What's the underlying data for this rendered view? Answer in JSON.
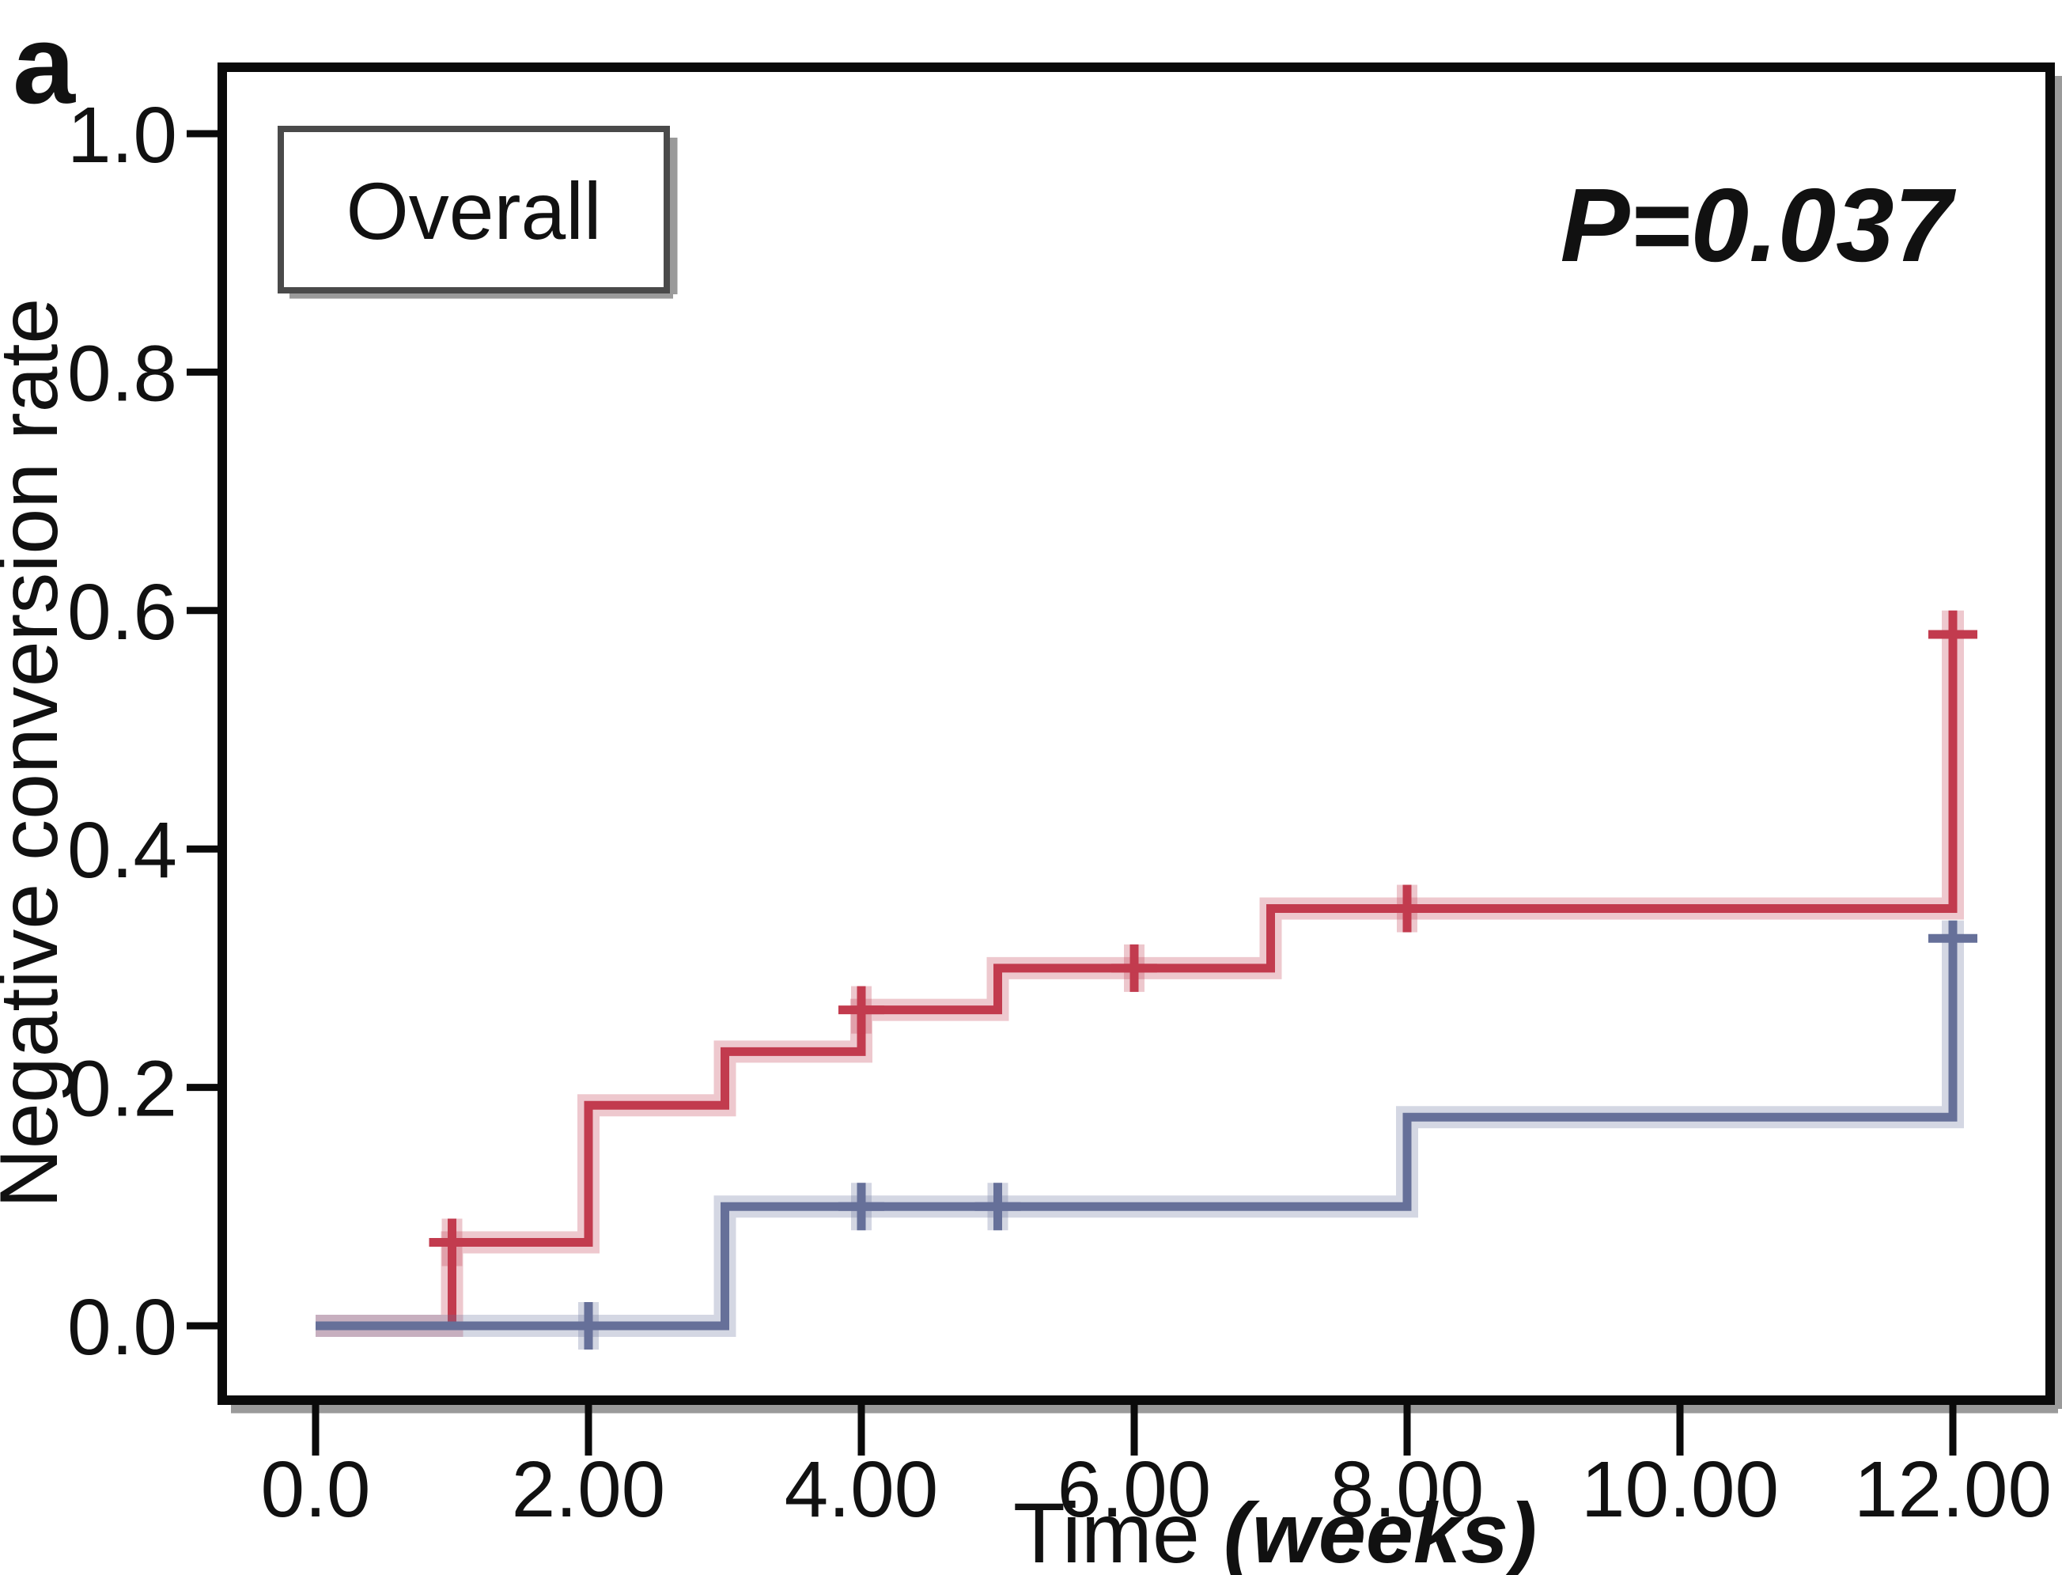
{
  "panel_label": "a",
  "legend": {
    "label": "Overall"
  },
  "annotation": {
    "text": "P=0.037"
  },
  "axes": {
    "x": {
      "title_normal": "Time ",
      "title_italic": "(weeks)",
      "tick_labels": [
        "0.0",
        "2.00",
        "4.00",
        "6.00",
        "8.00",
        "10.00",
        "12.00"
      ],
      "tick_values": [
        0,
        2,
        4,
        6,
        8,
        10,
        12
      ]
    },
    "y": {
      "title": "Negative conversion rate",
      "tick_labels": [
        "0.0",
        "0.2",
        "0.4",
        "0.6",
        "0.8",
        "1.0"
      ],
      "tick_values": [
        0,
        0.2,
        0.4,
        0.6,
        0.8,
        1.0
      ]
    }
  },
  "chart_data": {
    "type": "line",
    "subtype": "kaplan-meier-step-curves",
    "title": "",
    "xlabel": "Time (weeks)",
    "ylabel": "Negative conversion rate",
    "xlim": [
      0,
      12.7
    ],
    "ylim": [
      0,
      1.05
    ],
    "grid": "off",
    "p_value": "P=0.037",
    "group_box": "Overall",
    "series": [
      {
        "name": "upper-red-group",
        "color": "#c23b4e",
        "halo_color": "#c23b4e",
        "steps_x_weeks": [
          0,
          1,
          2,
          3,
          4,
          5,
          7
        ],
        "steps_y_rate": [
          0,
          0.07,
          0.185,
          0.23,
          0.265,
          0.3,
          0.35
        ],
        "censor_marks": [
          [
            1,
            0.07
          ],
          [
            4,
            0.265
          ],
          [
            6,
            0.3
          ],
          [
            8,
            0.35
          ]
        ],
        "terminal": {
          "x": 12,
          "line_top": 0.6,
          "censor_y": 0.58
        }
      },
      {
        "name": "lower-blue-group",
        "color": "#667099",
        "halo_color": "#667099",
        "steps_x_weeks": [
          0,
          3,
          8
        ],
        "steps_y_rate": [
          0,
          0.1,
          0.175
        ],
        "censor_marks": [
          [
            2,
            0
          ],
          [
            4,
            0.1
          ],
          [
            5,
            0.1
          ]
        ],
        "terminal": {
          "x": 12,
          "line_top": 0.34,
          "censor_y": 0.325
        }
      }
    ]
  }
}
